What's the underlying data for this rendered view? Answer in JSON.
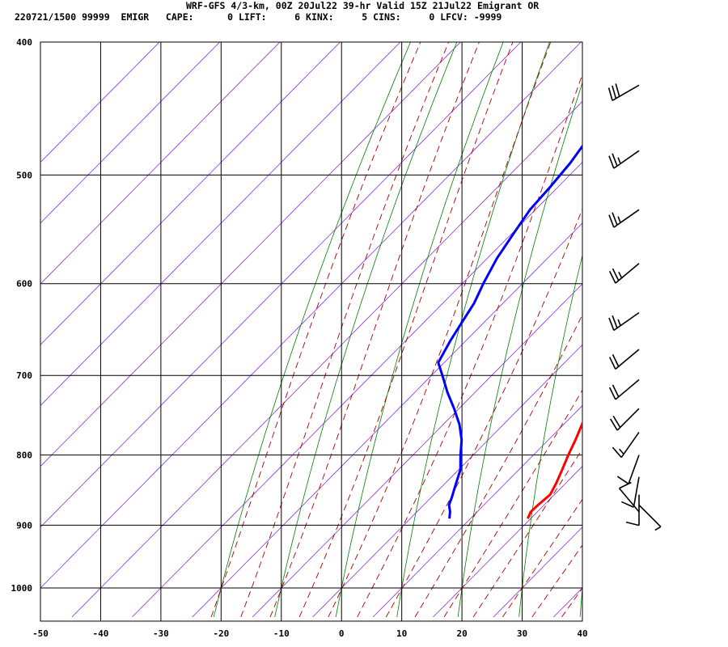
{
  "header": {
    "title": "WRF-GFS 4/3-km, 00Z 20Jul22 39-hr Valid 15Z 21Jul22 Emigrant OR",
    "subtitle": "220721/1500 99999  EMIGR   CAPE:      0 LIFT:     6 KINX:     5 CINS:     0 LFCV: -9999"
  },
  "chart_data": {
    "type": "line",
    "title": "WRF-GFS 4/3-km, 00Z 20Jul22 39-hr Valid 15Z 21Jul22 Emigrant OR",
    "xlabel": "",
    "ylabel": "",
    "x_axis": {
      "ticks": [
        -50,
        -40,
        -30,
        -20,
        -10,
        0,
        10,
        20,
        30,
        40
      ],
      "tick_labels": [
        "-50",
        "-40",
        "-30",
        "-20",
        "-10",
        "0",
        "10",
        "20",
        "30",
        "40"
      ],
      "range": [
        -50,
        40
      ]
    },
    "y_axis": {
      "scale": "log-pressure",
      "ticks": [
        400,
        500,
        600,
        700,
        800,
        900,
        1000
      ],
      "tick_labels": [
        "400",
        "500",
        "600",
        "700",
        "800",
        "900",
        "1000"
      ],
      "range": [
        400,
        1050
      ]
    },
    "grid": true,
    "background_lines": {
      "isotherms_skewed": [
        -120,
        -110,
        -100,
        -90,
        -80,
        -70,
        -60,
        -50,
        -40,
        -30,
        -20,
        -10,
        0,
        10,
        20,
        30,
        40,
        50
      ],
      "dry_adiabats_C_at_1000hPa": [
        -20,
        -10,
        0,
        10,
        20,
        30,
        40,
        50,
        60,
        70,
        80,
        90,
        100,
        110,
        120,
        130
      ],
      "moist_adiabats_C_at_1000hPa": [
        -20,
        -15,
        -10,
        -5,
        0,
        5,
        10,
        15,
        20,
        25,
        30,
        35,
        40
      ],
      "mixing_ratio_gkg": [
        0.2,
        0.5,
        1,
        2,
        3,
        5,
        8,
        12,
        16,
        20,
        28
      ]
    },
    "series": [
      {
        "role": "temperature",
        "color": "#ff0000",
        "points": [
          {
            "p": 890,
            "t": 19.5
          },
          {
            "p": 880,
            "t": 18.9
          },
          {
            "p": 870,
            "t": 19.0
          },
          {
            "p": 855,
            "t": 19.3
          },
          {
            "p": 840,
            "t": 18.5
          },
          {
            "p": 820,
            "t": 17.2
          },
          {
            "p": 800,
            "t": 15.8
          },
          {
            "p": 780,
            "t": 14.5
          },
          {
            "p": 750,
            "t": 12.3
          },
          {
            "p": 720,
            "t": 10.1
          },
          {
            "p": 700,
            "t": 8.4
          },
          {
            "p": 680,
            "t": 6.9
          },
          {
            "p": 650,
            "t": 4.4
          },
          {
            "p": 620,
            "t": 2.0
          },
          {
            "p": 600,
            "t": 0.2
          },
          {
            "p": 570,
            "t": -2.3
          },
          {
            "p": 540,
            "t": -4.5
          },
          {
            "p": 500,
            "t": -7.6
          },
          {
            "p": 470,
            "t": -10.8
          },
          {
            "p": 450,
            "t": -12.9
          },
          {
            "p": 430,
            "t": -15.0
          }
        ]
      },
      {
        "role": "dewpoint",
        "color": "#0000ff",
        "points": [
          {
            "p": 890,
            "t": 6.5
          },
          {
            "p": 880,
            "t": 5.5
          },
          {
            "p": 870,
            "t": 4.2
          },
          {
            "p": 860,
            "t": 3.5
          },
          {
            "p": 840,
            "t": 1.9
          },
          {
            "p": 820,
            "t": 0.3
          },
          {
            "p": 800,
            "t": -2.1
          },
          {
            "p": 780,
            "t": -4.4
          },
          {
            "p": 760,
            "t": -7.3
          },
          {
            "p": 740,
            "t": -10.8
          },
          {
            "p": 720,
            "t": -14.6
          },
          {
            "p": 700,
            "t": -18.2
          },
          {
            "p": 685,
            "t": -21.0
          },
          {
            "p": 660,
            "t": -22.6
          },
          {
            "p": 640,
            "t": -23.7
          },
          {
            "p": 620,
            "t": -24.8
          },
          {
            "p": 600,
            "t": -26.5
          },
          {
            "p": 575,
            "t": -28.4
          },
          {
            "p": 550,
            "t": -29.8
          },
          {
            "p": 530,
            "t": -30.9
          },
          {
            "p": 510,
            "t": -31.3
          },
          {
            "p": 490,
            "t": -31.9
          },
          {
            "p": 470,
            "t": -33.0
          },
          {
            "p": 450,
            "t": -34.1
          },
          {
            "p": 430,
            "t": -35.3
          }
        ]
      }
    ],
    "wind_barbs": [
      {
        "p": 430,
        "dir": 240,
        "spd": 30
      },
      {
        "p": 480,
        "dir": 235,
        "spd": 25
      },
      {
        "p": 530,
        "dir": 235,
        "spd": 25
      },
      {
        "p": 580,
        "dir": 230,
        "spd": 25
      },
      {
        "p": 630,
        "dir": 235,
        "spd": 25
      },
      {
        "p": 670,
        "dir": 230,
        "spd": 20
      },
      {
        "p": 705,
        "dir": 230,
        "spd": 20
      },
      {
        "p": 740,
        "dir": 225,
        "spd": 20
      },
      {
        "p": 770,
        "dir": 215,
        "spd": 15
      },
      {
        "p": 800,
        "dir": 200,
        "spd": 10
      },
      {
        "p": 830,
        "dir": 190,
        "spd": 10
      },
      {
        "p": 855,
        "dir": 180,
        "spd": 10
      },
      {
        "p": 870,
        "dir": 135,
        "spd": 5
      },
      {
        "p": 880,
        "dir": 320,
        "spd": 10
      }
    ],
    "colors": {
      "temperature": "#ff0000",
      "dewpoint": "#0000ff",
      "isotherm": "#8b2be2",
      "dry_adiabat": "#008000",
      "moist_adiabat": "#b00000",
      "grid": "#000000"
    }
  }
}
